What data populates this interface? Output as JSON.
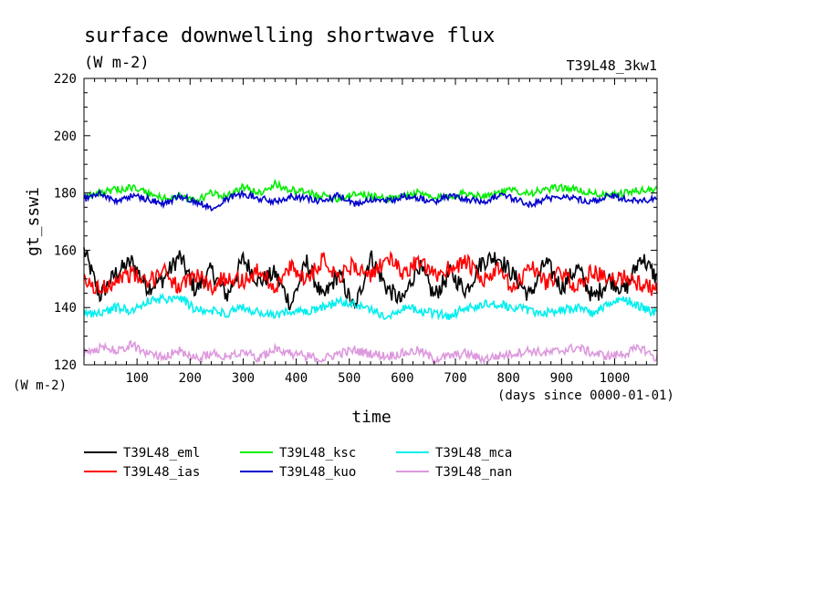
{
  "chart_data": {
    "type": "line",
    "title": "surface downwelling shortwave flux",
    "units": "(W m-2)",
    "run_label": "T39L48_3kw1",
    "ylabel": "gt_sswi",
    "xlabel": "time",
    "y_unit_label": "(W m-2)",
    "x_unit_label": "(days since 0000-01-01)",
    "xlim": [
      0,
      1080
    ],
    "ylim": [
      120,
      220
    ],
    "x_ticks": [
      100,
      200,
      300,
      400,
      500,
      600,
      700,
      800,
      900,
      1000
    ],
    "y_ticks": [
      120,
      140,
      160,
      180,
      200,
      220
    ],
    "grid": false,
    "legend_position": "bottom-left",
    "series": [
      {
        "name": "T39L48_eml",
        "color": "#000000",
        "x": [
          0,
          30,
          60,
          90,
          120,
          150,
          180,
          210,
          240,
          270,
          300,
          330,
          360,
          390,
          420,
          450,
          480,
          510,
          540,
          570,
          600,
          630,
          660,
          690,
          720,
          750,
          780,
          810,
          840,
          870,
          900,
          930,
          960,
          990,
          1020,
          1050,
          1080
        ],
        "values": [
          160,
          144,
          152,
          156,
          147,
          150,
          158,
          146,
          153,
          144,
          157,
          149,
          152,
          141,
          156,
          143,
          152,
          139,
          158,
          147,
          142,
          155,
          144,
          152,
          146,
          156,
          158,
          151,
          144,
          156,
          147,
          154,
          143,
          150,
          146,
          158,
          150
        ]
      },
      {
        "name": "T39L48_ias",
        "color": "#ff0000",
        "x": [
          0,
          30,
          60,
          90,
          120,
          150,
          180,
          210,
          240,
          270,
          300,
          330,
          360,
          390,
          420,
          450,
          480,
          510,
          540,
          570,
          600,
          630,
          660,
          690,
          720,
          750,
          780,
          810,
          840,
          870,
          900,
          930,
          960,
          990,
          1020,
          1050,
          1080
        ],
        "values": [
          149,
          146,
          150,
          152,
          148,
          154,
          146,
          152,
          147,
          151,
          149,
          153,
          147,
          154,
          150,
          157,
          151,
          155,
          150,
          158,
          152,
          156,
          151,
          154,
          156,
          149,
          153,
          146,
          155,
          149,
          152,
          147,
          153,
          149,
          151,
          148,
          146
        ]
      },
      {
        "name": "T39L48_ksc",
        "color": "#00ee00",
        "x": [
          0,
          30,
          60,
          90,
          120,
          150,
          180,
          210,
          240,
          270,
          300,
          330,
          360,
          390,
          420,
          450,
          480,
          510,
          540,
          570,
          600,
          630,
          660,
          690,
          720,
          750,
          780,
          810,
          840,
          870,
          900,
          930,
          960,
          990,
          1020,
          1050,
          1080
        ],
        "values": [
          179,
          180,
          181,
          182,
          180,
          178,
          179,
          177,
          180,
          179,
          182,
          180,
          183,
          181,
          180,
          179,
          178,
          180,
          179,
          178,
          179,
          180,
          178,
          179,
          180,
          179,
          180,
          181,
          180,
          181,
          182,
          181,
          180,
          179,
          180,
          181,
          181
        ]
      },
      {
        "name": "T39L48_kuo",
        "color": "#0000cc",
        "x": [
          0,
          30,
          60,
          90,
          120,
          150,
          180,
          210,
          240,
          270,
          300,
          330,
          360,
          390,
          420,
          450,
          480,
          510,
          540,
          570,
          600,
          630,
          660,
          690,
          720,
          750,
          780,
          810,
          840,
          870,
          900,
          930,
          960,
          990,
          1020,
          1050,
          1080
        ],
        "values": [
          178,
          180,
          177,
          179,
          178,
          176,
          179,
          177,
          175,
          178,
          180,
          178,
          177,
          179,
          178,
          177,
          179,
          176,
          178,
          177,
          179,
          178,
          177,
          179,
          178,
          177,
          179,
          178,
          176,
          178,
          179,
          178,
          177,
          179,
          178,
          177,
          178
        ]
      },
      {
        "name": "T39L48_mca",
        "color": "#00eeee",
        "x": [
          0,
          30,
          60,
          90,
          120,
          150,
          180,
          210,
          240,
          270,
          300,
          330,
          360,
          390,
          420,
          450,
          480,
          510,
          540,
          570,
          600,
          630,
          660,
          690,
          720,
          750,
          780,
          810,
          840,
          870,
          900,
          930,
          960,
          990,
          1020,
          1050,
          1080
        ],
        "values": [
          138,
          138,
          140,
          139,
          142,
          143,
          144,
          139,
          139,
          138,
          140,
          138,
          137,
          139,
          138,
          140,
          142,
          141,
          139,
          137,
          140,
          139,
          138,
          137,
          140,
          141,
          141,
          140,
          139,
          138,
          139,
          140,
          138,
          141,
          143,
          140,
          138
        ]
      },
      {
        "name": "T39L48_nan",
        "color": "#dd99dd",
        "x": [
          0,
          30,
          60,
          90,
          120,
          150,
          180,
          210,
          240,
          270,
          300,
          330,
          360,
          390,
          420,
          450,
          480,
          510,
          540,
          570,
          600,
          630,
          660,
          690,
          720,
          750,
          780,
          810,
          840,
          870,
          900,
          930,
          960,
          990,
          1020,
          1050,
          1080
        ],
        "values": [
          124,
          126,
          125,
          127,
          124,
          123,
          125,
          122,
          124,
          123,
          125,
          122,
          126,
          124,
          123,
          122,
          124,
          125,
          124,
          123,
          124,
          125,
          122,
          123,
          124,
          122,
          123,
          124,
          125,
          124,
          125,
          126,
          124,
          123,
          124,
          126,
          122
        ]
      }
    ]
  }
}
